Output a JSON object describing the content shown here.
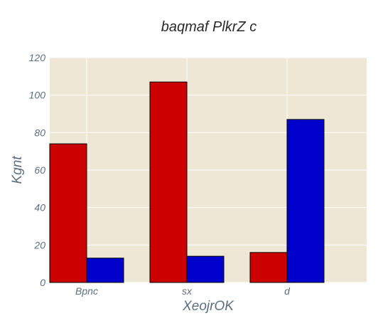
{
  "chart_data": {
    "type": "bar",
    "title": "baqmaf PlkrZ c",
    "xlabel": "XeojrOK",
    "ylabel": "Kgnt",
    "categories": [
      "Bpnc",
      "sx",
      "d"
    ],
    "series": [
      {
        "values": [
          74,
          107,
          16
        ],
        "color": "#cc0000"
      },
      {
        "values": [
          13,
          14,
          87
        ],
        "color": "#0000cc"
      }
    ],
    "ylim": [
      0,
      120
    ],
    "yticks": [
      0,
      20,
      40,
      60,
      80,
      100,
      120
    ],
    "grid": true,
    "legend": "none",
    "background_color": "#efe7d5"
  }
}
